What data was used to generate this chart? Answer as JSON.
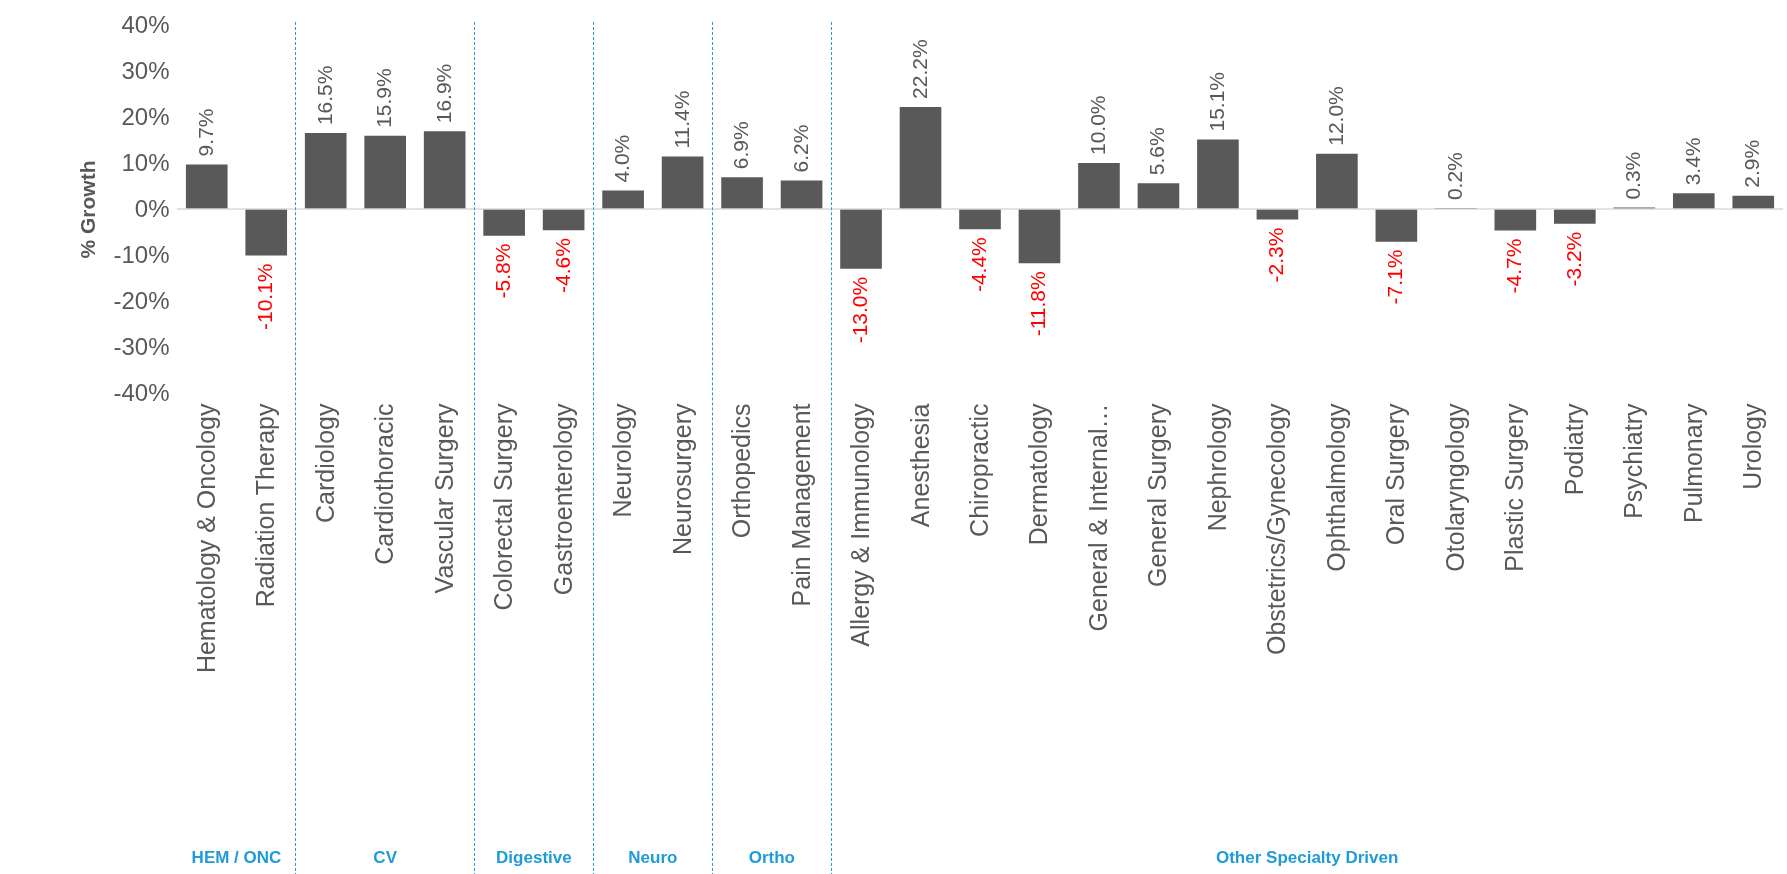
{
  "chart_data": {
    "type": "bar",
    "ylabel": "% Growth",
    "categories": [
      "Hematology & Oncology",
      "Radiation Therapy",
      "Cardiology",
      "Cardiothoracic",
      "Vascular Surgery",
      "Colorectal Surgery",
      "Gastroenterology",
      "Neurology",
      "Neurosurgery",
      "Orthopedics",
      "Pain Management",
      "Allergy & Immunology",
      "Anesthesia",
      "Chiropractic",
      "Dermatology",
      "General & Internal…",
      "General Surgery",
      "Nephrology",
      "Obstetrics/Gynecology",
      "Ophthalmology",
      "Oral Surgery",
      "Otolaryngology",
      "Plastic Surgery",
      "Podiatry",
      "Psychiatry",
      "Pulmonary",
      "Urology"
    ],
    "values": [
      9.7,
      -10.1,
      16.5,
      15.9,
      16.9,
      -5.8,
      -4.6,
      4.0,
      11.4,
      6.9,
      6.2,
      -13.0,
      22.2,
      -4.4,
      -11.8,
      10.0,
      5.6,
      15.1,
      -2.3,
      12.0,
      -7.1,
      0.2,
      -4.7,
      -3.2,
      0.3,
      3.4,
      2.9
    ],
    "value_labels": [
      "9.7%",
      "-10.1%",
      "16.5%",
      "15.9%",
      "16.9%",
      "-5.8%",
      "-4.6%",
      "4.0%",
      "11.4%",
      "6.9%",
      "6.2%",
      "-13.0%",
      "22.2%",
      "-4.4%",
      "-11.8%",
      "10.0%",
      "5.6%",
      "15.1%",
      "-2.3%",
      "12.0%",
      "-7.1%",
      "0.2%",
      "-4.7%",
      "-3.2%",
      "0.3%",
      "3.4%",
      "2.9%"
    ],
    "color": "#595959",
    "ylim": [
      -40,
      40
    ],
    "yticks": [
      {
        "value": -40,
        "label": "-40%"
      },
      {
        "value": -30,
        "label": "-30%"
      },
      {
        "value": -20,
        "label": "-20%"
      },
      {
        "value": -10,
        "label": "-10%"
      },
      {
        "value": 0,
        "label": "0%"
      },
      {
        "value": 10,
        "label": "10%"
      },
      {
        "value": 20,
        "label": "20%"
      },
      {
        "value": 30,
        "label": "30%"
      },
      {
        "value": 40,
        "label": "40%"
      }
    ],
    "ref_lines": [
      {
        "axis": "y",
        "value": 0,
        "color": "#d9d9d9"
      }
    ],
    "annotations": [
      "HEM / ONC",
      "CV",
      "Digestive",
      "Neuro",
      "Ortho",
      "Other Specialty Driven"
    ],
    "grid": false
  }
}
